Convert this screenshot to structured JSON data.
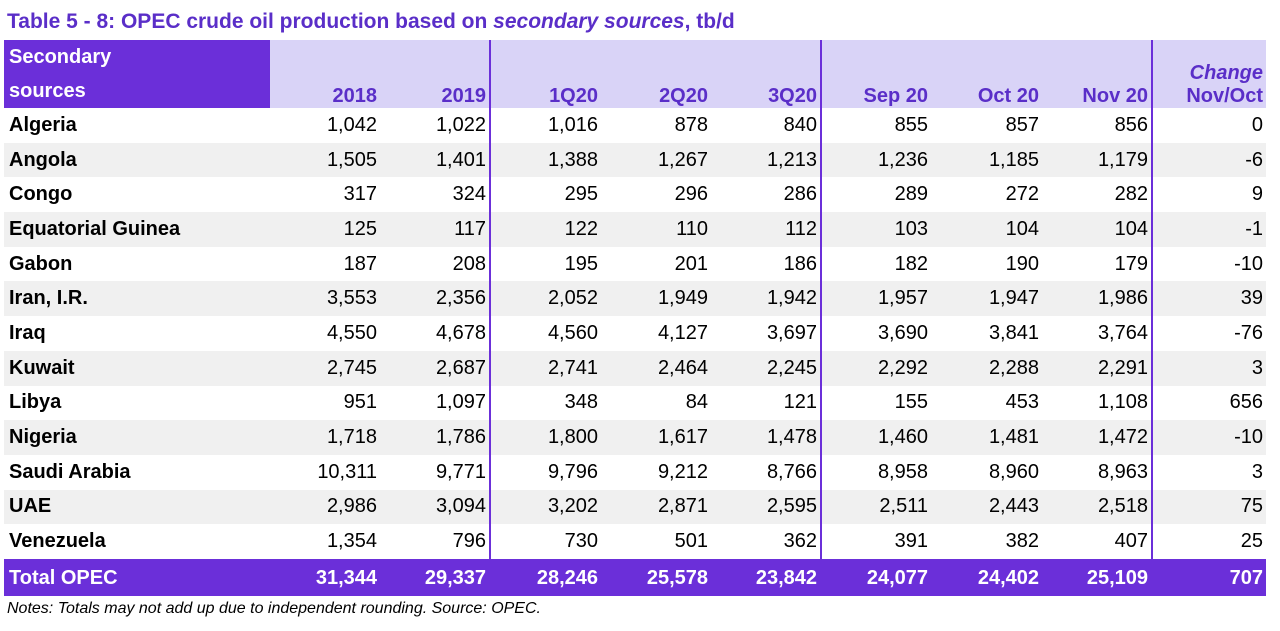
{
  "title": {
    "prefix": "Table 5 - 8: OPEC crude oil production based on ",
    "italic": "secondary sources",
    "suffix": ", tb/d"
  },
  "header": {
    "first_line1": "Secondary",
    "first_line2": "sources",
    "columns": [
      "2018",
      "2019",
      "1Q20",
      "2Q20",
      "3Q20",
      "Sep 20",
      "Oct 20",
      "Nov 20"
    ],
    "change_line1": "Change",
    "change_line2": "Nov/Oct"
  },
  "rows": [
    {
      "name": "Algeria",
      "values": [
        "1,042",
        "1,022",
        "1,016",
        "878",
        "840",
        "855",
        "857",
        "856",
        "0"
      ]
    },
    {
      "name": "Angola",
      "values": [
        "1,505",
        "1,401",
        "1,388",
        "1,267",
        "1,213",
        "1,236",
        "1,185",
        "1,179",
        "-6"
      ]
    },
    {
      "name": "Congo",
      "values": [
        "317",
        "324",
        "295",
        "296",
        "286",
        "289",
        "272",
        "282",
        "9"
      ]
    },
    {
      "name": "Equatorial Guinea",
      "values": [
        "125",
        "117",
        "122",
        "110",
        "112",
        "103",
        "104",
        "104",
        "-1"
      ]
    },
    {
      "name": "Gabon",
      "values": [
        "187",
        "208",
        "195",
        "201",
        "186",
        "182",
        "190",
        "179",
        "-10"
      ]
    },
    {
      "name": "Iran, I.R.",
      "values": [
        "3,553",
        "2,356",
        "2,052",
        "1,949",
        "1,942",
        "1,957",
        "1,947",
        "1,986",
        "39"
      ]
    },
    {
      "name": "Iraq",
      "values": [
        "4,550",
        "4,678",
        "4,560",
        "4,127",
        "3,697",
        "3,690",
        "3,841",
        "3,764",
        "-76"
      ]
    },
    {
      "name": "Kuwait",
      "values": [
        "2,745",
        "2,687",
        "2,741",
        "2,464",
        "2,245",
        "2,292",
        "2,288",
        "2,291",
        "3"
      ]
    },
    {
      "name": "Libya",
      "values": [
        "951",
        "1,097",
        "348",
        "84",
        "121",
        "155",
        "453",
        "1,108",
        "656"
      ]
    },
    {
      "name": "Nigeria",
      "values": [
        "1,718",
        "1,786",
        "1,800",
        "1,617",
        "1,478",
        "1,460",
        "1,481",
        "1,472",
        "-10"
      ]
    },
    {
      "name": "Saudi Arabia",
      "values": [
        "10,311",
        "9,771",
        "9,796",
        "9,212",
        "8,766",
        "8,958",
        "8,960",
        "8,963",
        "3"
      ]
    },
    {
      "name": "UAE",
      "values": [
        "2,986",
        "3,094",
        "3,202",
        "2,871",
        "2,595",
        "2,511",
        "2,443",
        "2,518",
        "75"
      ]
    },
    {
      "name": "Venezuela",
      "values": [
        "1,354",
        "796",
        "730",
        "501",
        "362",
        "391",
        "382",
        "407",
        "25"
      ]
    }
  ],
  "total": {
    "name": "Total  OPEC",
    "values": [
      "31,344",
      "29,337",
      "28,246",
      "25,578",
      "23,842",
      "24,077",
      "24,402",
      "25,109",
      "707"
    ]
  },
  "note": "Notes: Totals may not add up due to independent rounding. Source: OPEC.",
  "colors": {
    "accent": "#6b2fd9",
    "header_bg": "#d9d3f7",
    "title": "#5a2ec8",
    "stripe": "#f0f0f0"
  }
}
